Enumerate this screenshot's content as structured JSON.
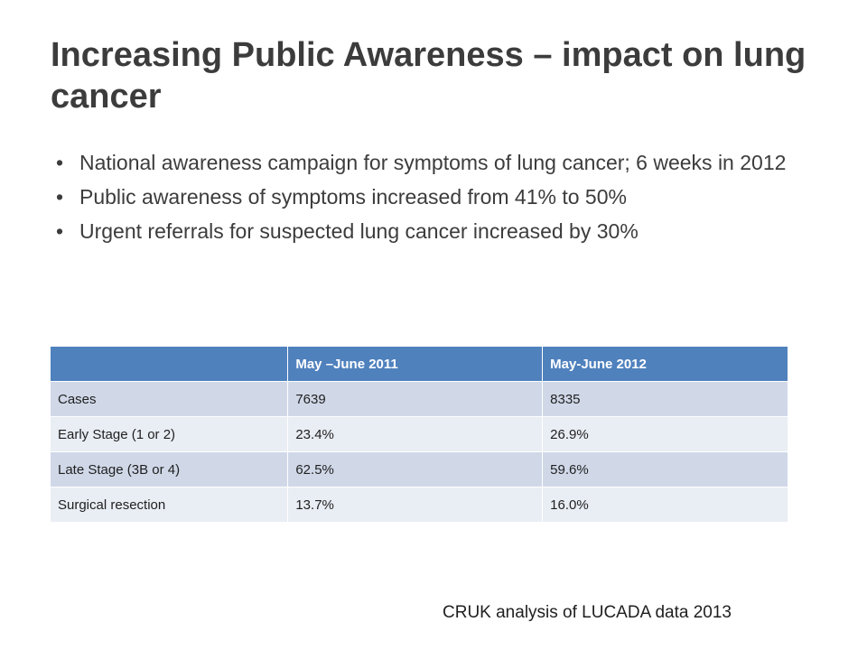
{
  "slide": {
    "title": "Increasing Public Awareness – impact on lung cancer",
    "bullet_glyph": "•",
    "bullets": [
      "National awareness campaign for symptoms of lung cancer; 6 weeks in 2012",
      "Public awareness of symptoms increased from 41% to 50%",
      "Urgent referrals for suspected lung cancer increased by 30%"
    ]
  },
  "table": {
    "headers": [
      "",
      "May –June 2011",
      "May-June 2012"
    ],
    "rows": [
      [
        "Cases",
        "7639",
        "8335"
      ],
      [
        "Early Stage (1 or 2)",
        "23.4%",
        "26.9%"
      ],
      [
        "Late Stage (3B or 4)",
        "62.5%",
        "59.6%"
      ],
      [
        "Surgical resection",
        "13.7%",
        "16.0%"
      ]
    ],
    "colors": {
      "header_bg": "#4f81bd",
      "row_odd_bg": "#d0d8e8",
      "row_even_bg": "#e9edf4"
    }
  },
  "source": "CRUK analysis of LUCADA data 2013"
}
